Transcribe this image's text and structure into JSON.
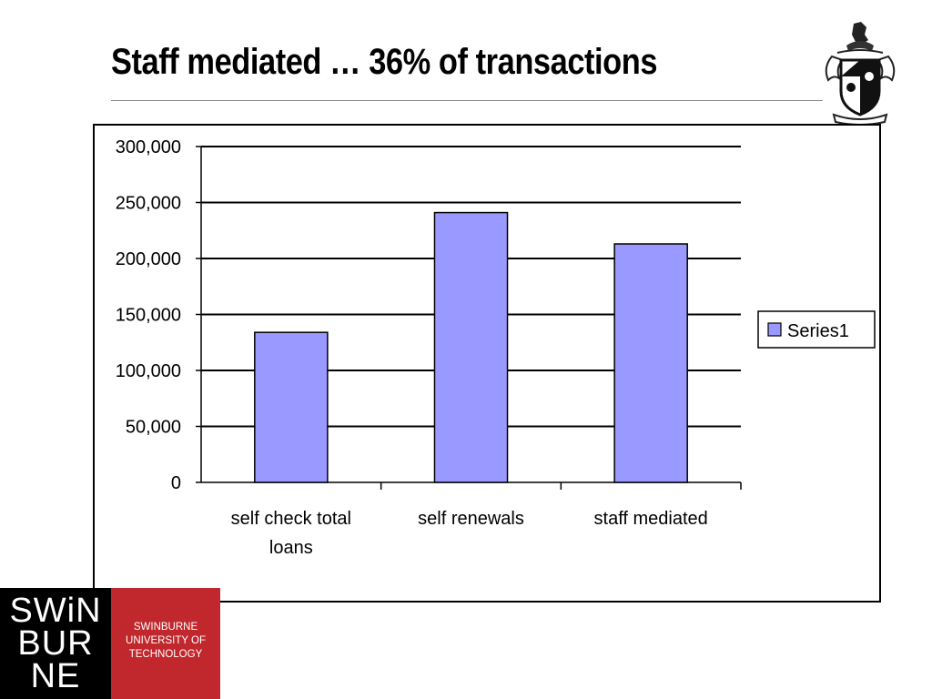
{
  "slide": {
    "title": "Staff mediated … 36% of transactions"
  },
  "logo": {
    "wordmark_lines": [
      "SWiN",
      "BUR",
      "NE"
    ],
    "university_lines": [
      "SWINBURNE",
      "UNIVERSITY OF",
      "TECHNOLOGY"
    ],
    "dark_color": "#000000",
    "red_color": "#c0282d"
  },
  "crest": {
    "icon": "coat-of-arms-icon"
  },
  "chart_data": {
    "type": "bar",
    "categories": [
      "self check total loans",
      "self renewals",
      "staff mediated"
    ],
    "series": [
      {
        "name": "Series1",
        "values": [
          134000,
          241000,
          213000
        ],
        "color": "#9999ff"
      }
    ],
    "ylim": [
      0,
      300000
    ],
    "yticks": [
      0,
      50000,
      100000,
      150000,
      200000,
      250000,
      300000
    ],
    "ytick_labels": [
      "0",
      "50,000",
      "100,000",
      "150,000",
      "200,000",
      "250,000",
      "300,000"
    ],
    "grid": true,
    "legend": "right"
  }
}
